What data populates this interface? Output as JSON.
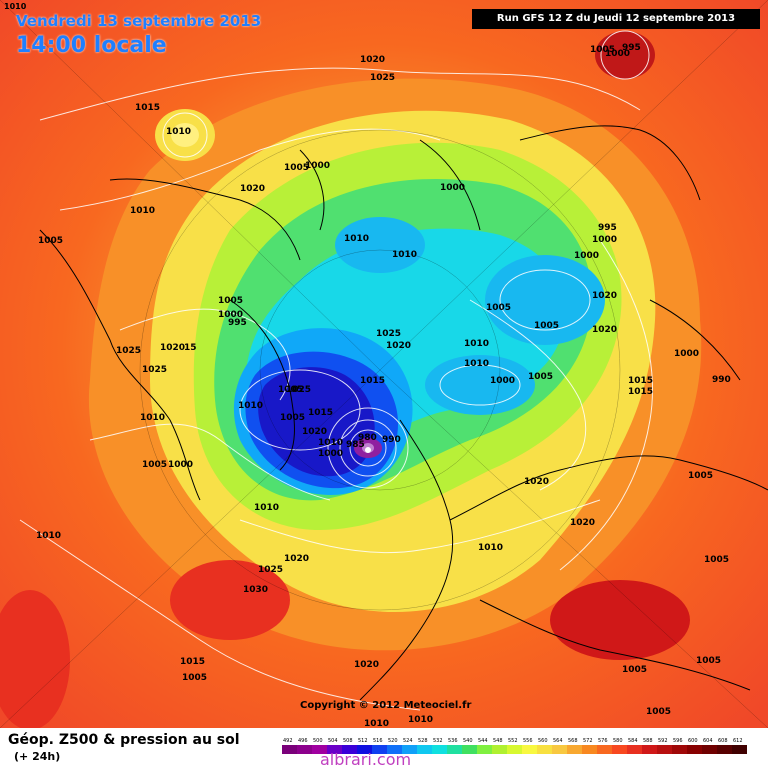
{
  "header": {
    "corner_label": "1010",
    "date": "Vendredi 13 septembre 2013",
    "time": "14:00 locale",
    "run": "Run GFS 12 Z du Jeudi 12 septembre 2013"
  },
  "copyright": "Copyright © 2012 Meteociel.fr",
  "footer": {
    "product": "Géop. Z500 & pression au sol",
    "lead": "(+ 24h)",
    "watermark": "albrari.com",
    "scale_values": [
      "492",
      "496",
      "500",
      "504",
      "508",
      "512",
      "516",
      "520",
      "524",
      "528",
      "532",
      "536",
      "540",
      "544",
      "548",
      "552",
      "556",
      "560",
      "564",
      "568",
      "572",
      "576",
      "580",
      "584",
      "588",
      "592",
      "596",
      "600",
      "604",
      "608",
      "612"
    ],
    "scale_colors": [
      "#7a007a",
      "#8c008c",
      "#a000a0",
      "#6a00c8",
      "#3a00d8",
      "#1010e0",
      "#1040f0",
      "#1070f8",
      "#10a0f8",
      "#10c8f0",
      "#10e0e0",
      "#20e0a0",
      "#40e060",
      "#80f040",
      "#b0f030",
      "#d8f830",
      "#f8f840",
      "#f8e040",
      "#f8c840",
      "#f8a830",
      "#f88820",
      "#f86820",
      "#f84820",
      "#e83020",
      "#d01818",
      "#b81010",
      "#a00808",
      "#880000",
      "#700000",
      "#580000",
      "#400000"
    ]
  },
  "pressure_labels": [
    "1020",
    "1025",
    "1015",
    "1010",
    "1005",
    "1000",
    "995",
    "1005",
    "1000",
    "1020",
    "1010",
    "1005",
    "1010",
    "1000",
    "995",
    "1000",
    "1000",
    "1020",
    "1020",
    "1005",
    "1010",
    "1025",
    "1020",
    "1025",
    "1005",
    "1000",
    "995",
    "1020",
    "15",
    "1025",
    "1025",
    "1015",
    "1010",
    "1005",
    "1005",
    "1015",
    "1020",
    "1010",
    "1000",
    "985",
    "980",
    "990",
    "1010",
    "1000",
    "1005",
    "1000",
    "990",
    "1015",
    "1015",
    "1005",
    "1020",
    "1010",
    "1020",
    "1010",
    "1000",
    "1010",
    "1005",
    "1030",
    "1025",
    "1020",
    "1020",
    "1010",
    "1005",
    "1005",
    "1005",
    "1015",
    "1005",
    "1010",
    "1010",
    "1005",
    "1010",
    "1005"
  ]
}
